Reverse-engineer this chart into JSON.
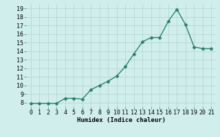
{
  "x": [
    0,
    1,
    2,
    3,
    4,
    5,
    6,
    7,
    8,
    9,
    10,
    11,
    12,
    13,
    14,
    15,
    16,
    17,
    18,
    19,
    20,
    21
  ],
  "y": [
    7.9,
    7.9,
    7.9,
    7.9,
    8.5,
    8.5,
    8.4,
    9.5,
    10.0,
    10.5,
    11.1,
    12.2,
    13.7,
    15.1,
    15.6,
    15.6,
    17.5,
    18.9,
    17.1,
    14.5,
    14.3,
    14.3
  ],
  "line_color": "#2a7f6f",
  "marker_color": "#2a7f6f",
  "bg_color": "#d0eeec",
  "grid_color": "#b8d8d4",
  "xlabel": "Humidex (Indice chaleur)",
  "ylim": [
    7.5,
    19.5
  ],
  "xlim": [
    -0.5,
    21.5
  ],
  "yticks": [
    8,
    9,
    10,
    11,
    12,
    13,
    14,
    15,
    16,
    17,
    18,
    19
  ],
  "xticks": [
    0,
    1,
    2,
    3,
    4,
    5,
    6,
    7,
    8,
    9,
    10,
    11,
    12,
    13,
    14,
    15,
    16,
    17,
    18,
    19,
    20,
    21
  ],
  "label_fontsize": 6.5,
  "tick_fontsize": 6,
  "marker_size": 2.5,
  "line_width": 1.0
}
